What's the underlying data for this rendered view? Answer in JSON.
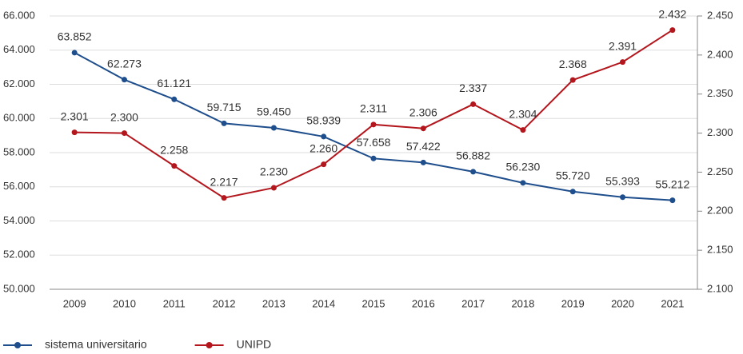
{
  "chart_data": {
    "type": "line",
    "categories": [
      "2009",
      "2010",
      "2011",
      "2012",
      "2013",
      "2014",
      "2015",
      "2016",
      "2017",
      "2018",
      "2019",
      "2020",
      "2021"
    ],
    "series": [
      {
        "name": "sistema universitario",
        "color": "#1f4e8c",
        "values": [
          63852,
          62273,
          61121,
          59715,
          59450,
          58939,
          57658,
          57422,
          56882,
          56230,
          55720,
          55393,
          55212
        ],
        "value_labels": [
          "63.852",
          "62.273",
          "61.121",
          "59.715",
          "59.450",
          "58.939",
          "57.658",
          "57.422",
          "56.882",
          "56.230",
          "55.720",
          "55.393",
          "55.212"
        ]
      },
      {
        "name": "UNIPD",
        "color": "#b3161c",
        "axis": "y2",
        "values": [
          2301,
          2300,
          2258,
          2217,
          2230,
          2260,
          2311,
          2306,
          2337,
          2304,
          2368,
          2391,
          2432
        ],
        "value_labels": [
          "2.301",
          "2.300",
          "2.258",
          "2.217",
          "2.230",
          "2.260",
          "2.311",
          "2.306",
          "2.337",
          "2.304",
          "2.368",
          "2.391",
          "2.432"
        ]
      }
    ],
    "ylim": [
      50000,
      66000
    ],
    "yticks": [
      {
        "value": 50000,
        "label": "50.000"
      },
      {
        "value": 52000,
        "label": "52.000"
      },
      {
        "value": 54000,
        "label": "54.000"
      },
      {
        "value": 56000,
        "label": "56.000"
      },
      {
        "value": 58000,
        "label": "58.000"
      },
      {
        "value": 60000,
        "label": "60.000"
      },
      {
        "value": 62000,
        "label": "62.000"
      },
      {
        "value": 64000,
        "label": "64.000"
      },
      {
        "value": 66000,
        "label": "66.000"
      }
    ],
    "y2lim": [
      2100,
      2450
    ],
    "y2ticks": [
      {
        "value": 2100,
        "label": "2.100"
      },
      {
        "value": 2150,
        "label": "2.150"
      },
      {
        "value": 2200,
        "label": "2.200"
      },
      {
        "value": 2250,
        "label": "2.250"
      },
      {
        "value": 2300,
        "label": "2.300"
      },
      {
        "value": 2350,
        "label": "2.350"
      },
      {
        "value": 2400,
        "label": "2.400"
      },
      {
        "value": 2450,
        "label": "2.450"
      }
    ],
    "grid": true,
    "legend": "bottom-left"
  }
}
